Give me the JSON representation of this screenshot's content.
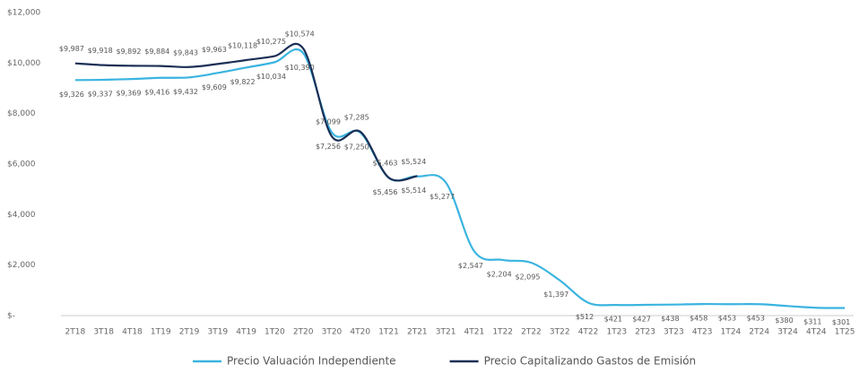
{
  "chart_data": {
    "type": "line",
    "categories": [
      "2T18",
      "3T18",
      "4T18",
      "1T19",
      "2T19",
      "3T19",
      "4T19",
      "1T20",
      "2T20",
      "3T20",
      "4T20",
      "1T21",
      "2T21",
      "3T21",
      "4T21",
      "1T22",
      "2T22",
      "3T22",
      "4T22",
      "1T23",
      "2T23",
      "3T23",
      "4T23",
      "1T24",
      "2T24",
      "3T24",
      "4T24",
      "1T25"
    ],
    "series": [
      {
        "name": "Precio Valuación Independiente",
        "color": "#3ab4e0",
        "values": [
          9326,
          9337,
          9369,
          9416,
          9432,
          9609,
          9822,
          10034,
          10390,
          7256,
          7250,
          5456,
          5514,
          5277,
          2547,
          2204,
          2095,
          1397,
          512,
          421,
          427,
          438,
          458,
          453,
          453,
          380,
          311,
          301
        ],
        "value_labels": [
          "$9,326",
          "$9,337",
          "$9,369",
          "$9,416",
          "$9,432",
          "$9,609",
          "$9,822",
          "$10,034",
          "$10,390",
          "$7,256",
          "$7,250",
          "$5,456",
          "$5,514",
          "$5,277",
          "$2,547",
          "$2,204",
          "$2,095",
          "$1,397",
          "$512",
          "$421",
          "$427",
          "$438",
          "$458",
          "$453",
          "$453",
          "$380",
          "$311",
          "$301"
        ]
      },
      {
        "name": "Precio Capitalizando Gastos de Emisión",
        "color": "#1b2f55",
        "values": [
          9987,
          9918,
          9892,
          9884,
          9843,
          9963,
          10118,
          10275,
          10574,
          7099,
          7285,
          5463,
          5524,
          null,
          null,
          null,
          null,
          null,
          null,
          null,
          null,
          null,
          null,
          null,
          null,
          null,
          null,
          null
        ],
        "value_labels": [
          "$9,987",
          "$9,918",
          "$9,892",
          "$9,884",
          "$9,843",
          "$9,963",
          "$10,118",
          "$10,275",
          "$10,574",
          "$7,099",
          "$7,285",
          "$5,463",
          "$5,524",
          null,
          null,
          null,
          null,
          null,
          null,
          null,
          null,
          null,
          null,
          null,
          null,
          null,
          null,
          null
        ]
      }
    ],
    "ylim": [
      0,
      12000
    ],
    "yticks": [
      {
        "value": 0,
        "label": "$-"
      },
      {
        "value": 2000,
        "label": "$2,000"
      },
      {
        "value": 4000,
        "label": "$4,000"
      },
      {
        "value": 6000,
        "label": "$6,000"
      },
      {
        "value": 8000,
        "label": "$8,000"
      },
      {
        "value": 10000,
        "label": "$10,000"
      },
      {
        "value": 12000,
        "label": "$12,000"
      }
    ],
    "legend": "bottom"
  }
}
